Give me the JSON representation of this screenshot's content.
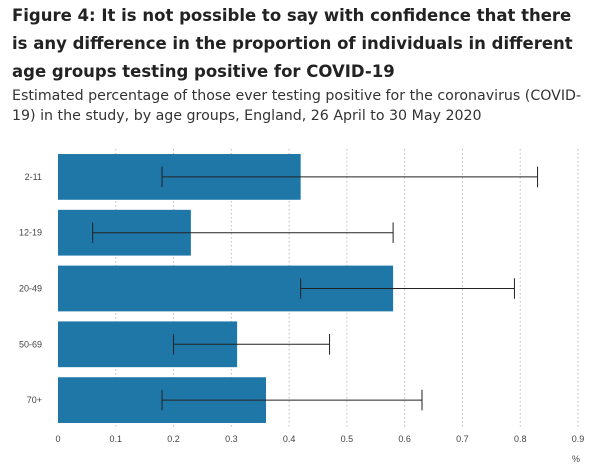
{
  "figure": {
    "title": "Figure 4: It is not possible to say with confidence that there is any difference in the proportion of individuals in different age groups testing positive for COVID-19",
    "subtitle": "Estimated percentage of those ever testing positive for the coronavirus (COVID-19) in the study, by age groups, England, 26 April to 30 May 2020"
  },
  "chart_data": {
    "type": "bar",
    "orientation": "horizontal",
    "categories": [
      "2-11",
      "12-19",
      "20-49",
      "50-69",
      "70+"
    ],
    "values": [
      0.42,
      0.23,
      0.58,
      0.31,
      0.36
    ],
    "error_lower": [
      0.18,
      0.06,
      0.42,
      0.2,
      0.18
    ],
    "error_upper": [
      0.83,
      0.58,
      0.79,
      0.47,
      0.63
    ],
    "xlim": [
      0,
      0.9
    ],
    "x_ticks": [
      "0",
      "0.1",
      "0.2",
      "0.3",
      "0.4",
      "0.5",
      "0.6",
      "0.7",
      "0.8",
      "0.9"
    ],
    "x_unit": "%",
    "grid": "vertical dotted",
    "legend": "none",
    "bar_color": "#1F77A8",
    "error_bar_color": "#222222",
    "grid_color": "#BBBBBB"
  }
}
